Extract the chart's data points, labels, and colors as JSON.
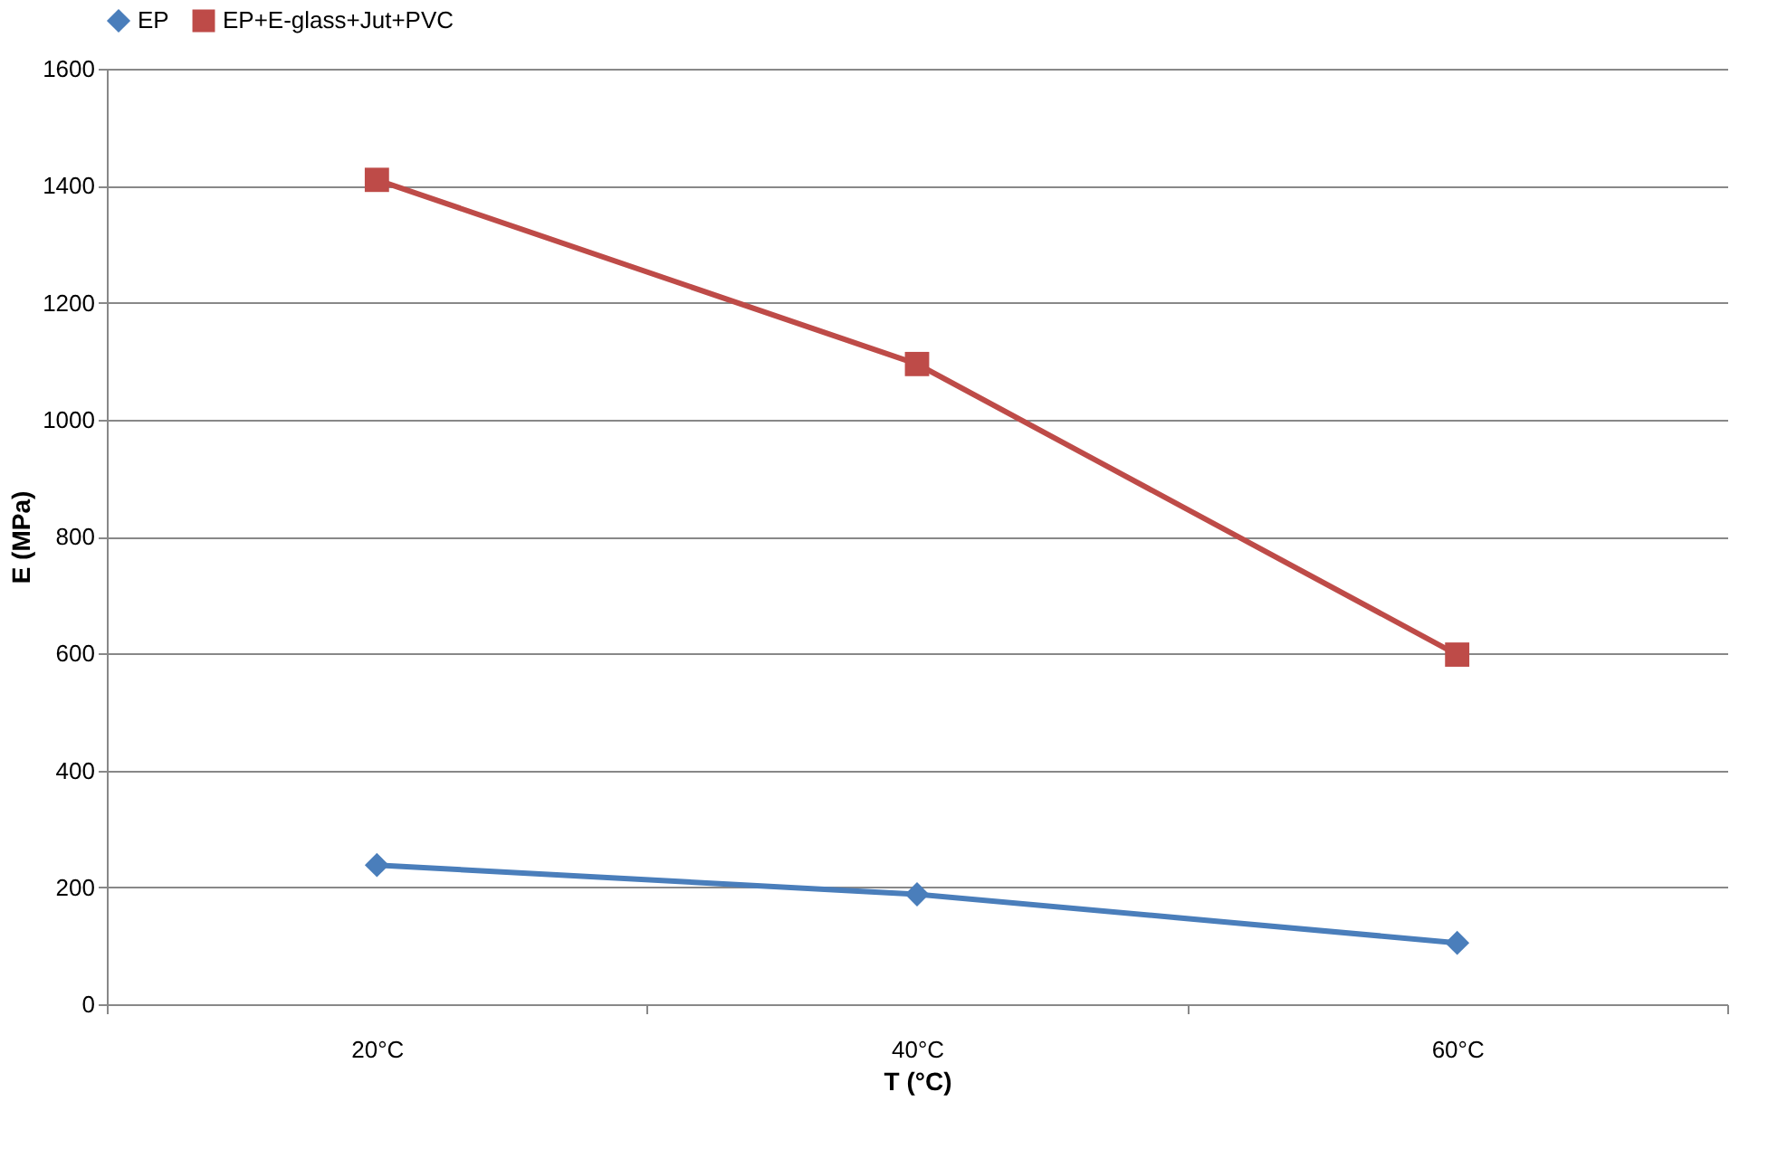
{
  "chart_data": {
    "type": "line",
    "xlabel": "T (°C)",
    "ylabel": "E (MPa)",
    "categories": [
      "20°C",
      "40°C",
      "60°C"
    ],
    "series": [
      {
        "name": "EP",
        "color": "#4a7ebb",
        "marker": "diamond",
        "values": [
          238,
          188,
          105
        ]
      },
      {
        "name": "EP+E-glass+Jut+PVC",
        "color": "#be4b48",
        "marker": "square",
        "values": [
          1410,
          1095,
          598
        ]
      }
    ],
    "ylim": [
      0,
      1600
    ],
    "yticks": [
      0,
      200,
      400,
      600,
      800,
      1000,
      1200,
      1400,
      1600
    ],
    "grid": "y",
    "legend": "top",
    "line_style": "solid"
  }
}
